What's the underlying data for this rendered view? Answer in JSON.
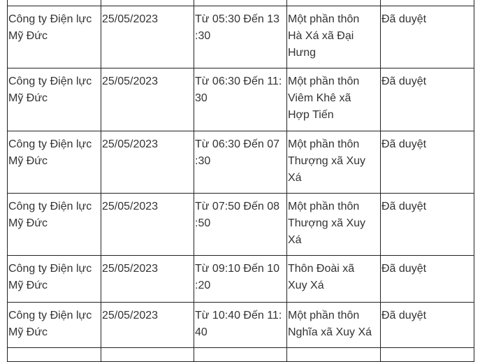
{
  "rows": [
    {
      "unit": [
        "Công ty Điện lực",
        "Mỹ Đức"
      ],
      "date": [
        "25/05/2023"
      ],
      "time": [
        "Từ 05:30 Đến 13",
        ":30"
      ],
      "area": [
        "Một phần thôn",
        "Hà Xá xã Đại",
        "Hưng"
      ],
      "status": [
        "Đã duyệt"
      ]
    },
    {
      "unit": [
        "Công ty Điện lực",
        "Mỹ Đức"
      ],
      "date": [
        "25/05/2023"
      ],
      "time": [
        "Từ 06:30 Đến 11:",
        "30"
      ],
      "area": [
        "Một phần thôn",
        "Viêm Khê xã",
        "Hợp Tiến"
      ],
      "status": [
        "Đã duyệt"
      ]
    },
    {
      "unit": [
        "Công ty Điện lực",
        "Mỹ Đức"
      ],
      "date": [
        "25/05/2023"
      ],
      "time": [
        "Từ 06:30 Đến 07",
        ":30"
      ],
      "area": [
        "Một phần thôn",
        "Thượng xã Xuy",
        "Xá"
      ],
      "status": [
        "Đã duyệt"
      ]
    },
    {
      "unit": [
        "Công ty Điện lực",
        "Mỹ Đức"
      ],
      "date": [
        "25/05/2023"
      ],
      "time": [
        "Từ 07:50 Đến 08",
        ":50"
      ],
      "area": [
        "Một phần thôn",
        "Thượng xã Xuy",
        "Xá"
      ],
      "status": [
        "Đã duyệt"
      ]
    },
    {
      "unit": [
        "Công ty Điện lực",
        "Mỹ Đức"
      ],
      "date": [
        "25/05/2023"
      ],
      "time": [
        "Từ 09:10 Đến 10",
        ":20"
      ],
      "area": [
        "Thôn Đoài xã",
        "Xuy Xá"
      ],
      "status": [
        "Đã duyệt"
      ]
    },
    {
      "unit": [
        "Công ty Điện lực",
        "Mỹ Đức"
      ],
      "date": [
        "25/05/2023"
      ],
      "time": [
        "Từ 10:40 Đến 11:",
        "40"
      ],
      "area": [
        "Một phần thôn",
        "Nghĩa xã Xuy Xá"
      ],
      "status": [
        "Đã duyệt"
      ]
    }
  ]
}
